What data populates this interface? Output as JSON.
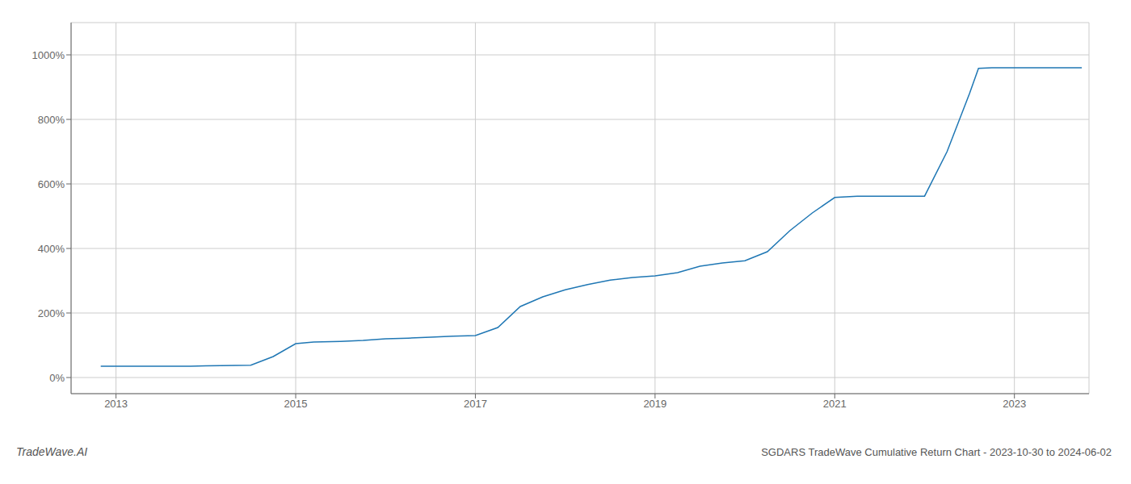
{
  "chart_data": {
    "type": "line",
    "title": "SGDARS TradeWave Cumulative Return Chart - 2023-10-30 to 2024-06-02",
    "annotations": [
      "TradeWave.AI"
    ],
    "color": "#1f77b4",
    "grid": true,
    "xlim": [
      2012.5,
      2023.83
    ],
    "ylim": [
      -0.5,
      11.0
    ],
    "xticks": [
      2013,
      2015,
      2017,
      2019,
      2021,
      2023
    ],
    "yticks": [
      {
        "value": 0,
        "label": "0%"
      },
      {
        "value": 2,
        "label": "200%"
      },
      {
        "value": 4,
        "label": "400%"
      },
      {
        "value": 6,
        "label": "600%"
      },
      {
        "value": 8,
        "label": "800%"
      },
      {
        "value": 10,
        "label": "1000%"
      }
    ],
    "x": [
      2012.83,
      2013.0,
      2013.5,
      2013.83,
      2014.0,
      2014.5,
      2014.75,
      2015.0,
      2015.2,
      2015.5,
      2015.75,
      2016.0,
      2016.25,
      2016.5,
      2016.75,
      2017.0,
      2017.25,
      2017.5,
      2017.75,
      2018.0,
      2018.25,
      2018.5,
      2018.75,
      2019.0,
      2019.25,
      2019.5,
      2019.75,
      2020.0,
      2020.25,
      2020.5,
      2020.75,
      2021.0,
      2021.25,
      2021.5,
      2021.6,
      2021.75,
      2022.0,
      2022.25,
      2022.5,
      2022.6,
      2022.75,
      2023.0,
      2023.25,
      2023.5,
      2023.75
    ],
    "values": [
      0.35,
      0.35,
      0.35,
      0.35,
      0.36,
      0.38,
      0.65,
      1.05,
      1.1,
      1.12,
      1.15,
      1.2,
      1.22,
      1.25,
      1.28,
      1.3,
      1.55,
      2.2,
      2.5,
      2.72,
      2.88,
      3.02,
      3.1,
      3.15,
      3.25,
      3.45,
      3.55,
      3.62,
      3.9,
      4.55,
      5.1,
      5.58,
      5.62,
      5.62,
      5.62,
      5.62,
      5.62,
      7.0,
      8.8,
      9.58,
      9.6,
      9.6,
      9.6,
      9.6,
      9.6
    ]
  }
}
